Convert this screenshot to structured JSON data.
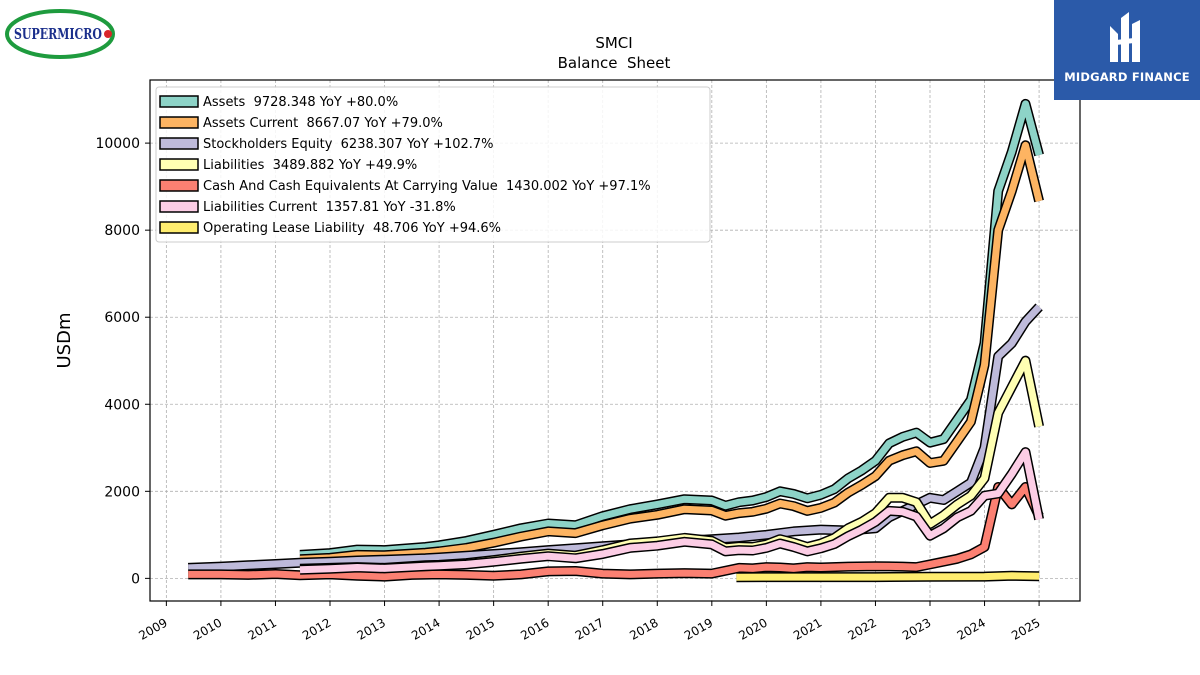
{
  "brand_left": {
    "name": "SUPERMICRO",
    "colors": {
      "ring": "#1e9b3e",
      "text": "#1b2f8c",
      "dot": "#d9262a"
    }
  },
  "brand_right": {
    "name": "MIDGARD FINANCE",
    "color": "#2b5aa9"
  },
  "chart_data": {
    "type": "line",
    "title": "SMCI",
    "subtitle": "Balance  Sheet",
    "xlabel": "",
    "ylabel": "USDm",
    "xlim": [
      2008.7,
      2025.75
    ],
    "ylim": [
      -520,
      11450
    ],
    "x_ticks": [
      2009,
      2010,
      2011,
      2012,
      2013,
      2014,
      2015,
      2016,
      2017,
      2018,
      2019,
      2020,
      2021,
      2022,
      2023,
      2024,
      2025
    ],
    "y_ticks": [
      0,
      2000,
      4000,
      6000,
      8000,
      10000
    ],
    "grid": true,
    "legend_position": "top-left",
    "series": [
      {
        "name": "Assets  9728.348 YoY +80.0%",
        "color": "#8dd3c7",
        "points": [
          [
            2011.45,
            540
          ],
          [
            2012.0,
            580
          ],
          [
            2012.5,
            660
          ],
          [
            2013.0,
            650
          ],
          [
            2013.75,
            720
          ],
          [
            2014.0,
            760
          ],
          [
            2014.5,
            860
          ],
          [
            2015.0,
            1000
          ],
          [
            2015.5,
            1150
          ],
          [
            2016.0,
            1260
          ],
          [
            2016.5,
            1220
          ],
          [
            2017.0,
            1430
          ],
          [
            2017.5,
            1590
          ],
          [
            2018.0,
            1700
          ],
          [
            2018.5,
            1820
          ],
          [
            2019.0,
            1790
          ],
          [
            2019.25,
            1670
          ],
          [
            2019.5,
            1750
          ],
          [
            2019.75,
            1790
          ],
          [
            2020.0,
            1870
          ],
          [
            2020.25,
            2000
          ],
          [
            2020.5,
            1940
          ],
          [
            2020.75,
            1840
          ],
          [
            2021.0,
            1920
          ],
          [
            2021.25,
            2050
          ],
          [
            2021.5,
            2300
          ],
          [
            2021.75,
            2480
          ],
          [
            2022.0,
            2700
          ],
          [
            2022.25,
            3100
          ],
          [
            2022.5,
            3250
          ],
          [
            2022.75,
            3350
          ],
          [
            2023.0,
            3120
          ],
          [
            2023.25,
            3200
          ],
          [
            2023.5,
            3650
          ],
          [
            2023.75,
            4100
          ],
          [
            2024.0,
            5400
          ],
          [
            2024.25,
            8900
          ],
          [
            2024.5,
            9800
          ],
          [
            2024.75,
            10900
          ],
          [
            2025.0,
            9728
          ]
        ]
      },
      {
        "name": "Assets Current  8667.07 YoY +79.0%",
        "color": "#fdb462",
        "points": [
          [
            2011.45,
            440
          ],
          [
            2012.0,
            470
          ],
          [
            2012.5,
            540
          ],
          [
            2013.0,
            530
          ],
          [
            2013.75,
            590
          ],
          [
            2014.0,
            620
          ],
          [
            2014.5,
            700
          ],
          [
            2015.0,
            820
          ],
          [
            2015.5,
            960
          ],
          [
            2016.0,
            1080
          ],
          [
            2016.5,
            1040
          ],
          [
            2017.0,
            1220
          ],
          [
            2017.5,
            1370
          ],
          [
            2018.0,
            1460
          ],
          [
            2018.5,
            1590
          ],
          [
            2019.0,
            1560
          ],
          [
            2019.25,
            1440
          ],
          [
            2019.5,
            1500
          ],
          [
            2019.75,
            1530
          ],
          [
            2020.0,
            1600
          ],
          [
            2020.25,
            1720
          ],
          [
            2020.5,
            1660
          ],
          [
            2020.75,
            1550
          ],
          [
            2021.0,
            1620
          ],
          [
            2021.25,
            1740
          ],
          [
            2021.5,
            1970
          ],
          [
            2021.75,
            2150
          ],
          [
            2022.0,
            2350
          ],
          [
            2022.25,
            2700
          ],
          [
            2022.5,
            2830
          ],
          [
            2022.75,
            2920
          ],
          [
            2023.0,
            2650
          ],
          [
            2023.25,
            2700
          ],
          [
            2023.5,
            3150
          ],
          [
            2023.75,
            3600
          ],
          [
            2024.0,
            4900
          ],
          [
            2024.25,
            8000
          ],
          [
            2024.5,
            8900
          ],
          [
            2024.75,
            9950
          ],
          [
            2025.0,
            8667
          ]
        ]
      },
      {
        "name": "Stockholders Equity  6238.307 YoY +102.7%",
        "color": "#bebada",
        "points": [
          [
            2009.4,
            240
          ],
          [
            2010.0,
            270
          ],
          [
            2010.5,
            300
          ],
          [
            2011.0,
            330
          ],
          [
            2011.45,
            360
          ],
          [
            2012.0,
            380
          ],
          [
            2012.5,
            410
          ],
          [
            2013.0,
            430
          ],
          [
            2013.75,
            460
          ],
          [
            2014.0,
            480
          ],
          [
            2014.5,
            520
          ],
          [
            2015.0,
            560
          ],
          [
            2015.5,
            600
          ],
          [
            2016.0,
            650
          ],
          [
            2016.5,
            690
          ],
          [
            2017.0,
            740
          ],
          [
            2017.5,
            780
          ],
          [
            2018.0,
            820
          ],
          [
            2018.5,
            860
          ],
          [
            2019.0,
            900
          ],
          [
            2019.5,
            940
          ],
          [
            2020.0,
            1000
          ],
          [
            2020.5,
            1080
          ],
          [
            2021.0,
            1120
          ],
          [
            2021.5,
            1100
          ],
          [
            2022.0,
            1150
          ],
          [
            2022.25,
            1400
          ],
          [
            2022.5,
            1550
          ],
          [
            2022.75,
            1700
          ],
          [
            2023.0,
            1850
          ],
          [
            2023.25,
            1800
          ],
          [
            2023.5,
            2000
          ],
          [
            2023.75,
            2200
          ],
          [
            2024.0,
            3000
          ],
          [
            2024.25,
            5100
          ],
          [
            2024.5,
            5400
          ],
          [
            2024.75,
            5900
          ],
          [
            2025.0,
            6238
          ]
        ]
      },
      {
        "name": "Liabilities  3489.882 YoY +49.9%",
        "color": "#ffffb3",
        "points": [
          [
            2011.45,
            220
          ],
          [
            2012.0,
            240
          ],
          [
            2012.5,
            260
          ],
          [
            2013.0,
            240
          ],
          [
            2013.75,
            300
          ],
          [
            2014.0,
            310
          ],
          [
            2014.5,
            350
          ],
          [
            2015.0,
            420
          ],
          [
            2015.5,
            500
          ],
          [
            2016.0,
            570
          ],
          [
            2016.5,
            520
          ],
          [
            2017.0,
            650
          ],
          [
            2017.5,
            800
          ],
          [
            2018.0,
            850
          ],
          [
            2018.5,
            930
          ],
          [
            2019.0,
            860
          ],
          [
            2019.25,
            700
          ],
          [
            2019.5,
            730
          ],
          [
            2019.75,
            720
          ],
          [
            2020.0,
            780
          ],
          [
            2020.25,
            900
          ],
          [
            2020.5,
            820
          ],
          [
            2020.75,
            720
          ],
          [
            2021.0,
            800
          ],
          [
            2021.25,
            930
          ],
          [
            2021.5,
            1150
          ],
          [
            2021.75,
            1300
          ],
          [
            2022.0,
            1500
          ],
          [
            2022.25,
            1850
          ],
          [
            2022.5,
            1850
          ],
          [
            2022.75,
            1750
          ],
          [
            2023.0,
            1250
          ],
          [
            2023.25,
            1450
          ],
          [
            2023.5,
            1700
          ],
          [
            2023.75,
            1900
          ],
          [
            2024.0,
            2300
          ],
          [
            2024.25,
            3800
          ],
          [
            2024.5,
            4400
          ],
          [
            2024.75,
            5000
          ],
          [
            2025.0,
            3490
          ]
        ]
      },
      {
        "name": "Cash And Cash Equivalents At Carrying Value  1430.002 YoY +97.1%",
        "color": "#fb8072",
        "points": [
          [
            2009.4,
            90
          ],
          [
            2010.0,
            90
          ],
          [
            2010.5,
            80
          ],
          [
            2011.0,
            100
          ],
          [
            2011.45,
            70
          ],
          [
            2012.0,
            90
          ],
          [
            2012.5,
            60
          ],
          [
            2013.0,
            40
          ],
          [
            2013.5,
            80
          ],
          [
            2014.0,
            90
          ],
          [
            2014.5,
            80
          ],
          [
            2015.0,
            60
          ],
          [
            2015.5,
            90
          ],
          [
            2016.0,
            160
          ],
          [
            2016.5,
            170
          ],
          [
            2017.0,
            110
          ],
          [
            2017.5,
            90
          ],
          [
            2018.0,
            110
          ],
          [
            2018.5,
            120
          ],
          [
            2019.0,
            110
          ],
          [
            2019.5,
            240
          ],
          [
            2019.75,
            230
          ],
          [
            2020.0,
            260
          ],
          [
            2020.25,
            250
          ],
          [
            2020.5,
            230
          ],
          [
            2020.75,
            260
          ],
          [
            2021.0,
            250
          ],
          [
            2021.5,
            270
          ],
          [
            2022.0,
            280
          ],
          [
            2022.5,
            270
          ],
          [
            2022.75,
            260
          ],
          [
            2023.0,
            320
          ],
          [
            2023.5,
            450
          ],
          [
            2023.75,
            550
          ],
          [
            2024.0,
            720
          ],
          [
            2024.25,
            2100
          ],
          [
            2024.5,
            1700
          ],
          [
            2024.75,
            2100
          ],
          [
            2025.0,
            1430
          ]
        ]
      },
      {
        "name": "Liabilities Current  1357.81 YoY -31.8%",
        "color": "#fccde5",
        "points": [
          [
            2011.45,
            200
          ],
          [
            2012.0,
            220
          ],
          [
            2012.5,
            250
          ],
          [
            2013.0,
            230
          ],
          [
            2013.75,
            280
          ],
          [
            2014.0,
            290
          ],
          [
            2014.5,
            320
          ],
          [
            2015.0,
            380
          ],
          [
            2015.5,
            450
          ],
          [
            2016.0,
            510
          ],
          [
            2016.5,
            460
          ],
          [
            2017.0,
            560
          ],
          [
            2017.5,
            700
          ],
          [
            2018.0,
            750
          ],
          [
            2018.5,
            840
          ],
          [
            2019.0,
            780
          ],
          [
            2019.25,
            620
          ],
          [
            2019.5,
            650
          ],
          [
            2019.75,
            640
          ],
          [
            2020.0,
            700
          ],
          [
            2020.25,
            800
          ],
          [
            2020.5,
            720
          ],
          [
            2020.75,
            620
          ],
          [
            2021.0,
            690
          ],
          [
            2021.25,
            790
          ],
          [
            2021.5,
            970
          ],
          [
            2021.75,
            1120
          ],
          [
            2022.0,
            1300
          ],
          [
            2022.25,
            1550
          ],
          [
            2022.5,
            1530
          ],
          [
            2022.75,
            1420
          ],
          [
            2023.0,
            980
          ],
          [
            2023.25,
            1150
          ],
          [
            2023.5,
            1400
          ],
          [
            2023.75,
            1550
          ],
          [
            2024.0,
            1900
          ],
          [
            2024.25,
            1950
          ],
          [
            2024.5,
            2400
          ],
          [
            2024.75,
            2900
          ],
          [
            2025.0,
            1358
          ]
        ]
      },
      {
        "name": "Operating Lease Liability  48.706 YoY +94.6%",
        "color": "#ffed6f",
        "points": [
          [
            2019.45,
            25
          ],
          [
            2020.0,
            30
          ],
          [
            2021.0,
            28
          ],
          [
            2022.0,
            30
          ],
          [
            2023.0,
            35
          ],
          [
            2024.0,
            40
          ],
          [
            2024.5,
            60
          ],
          [
            2025.0,
            49
          ]
        ]
      }
    ]
  }
}
